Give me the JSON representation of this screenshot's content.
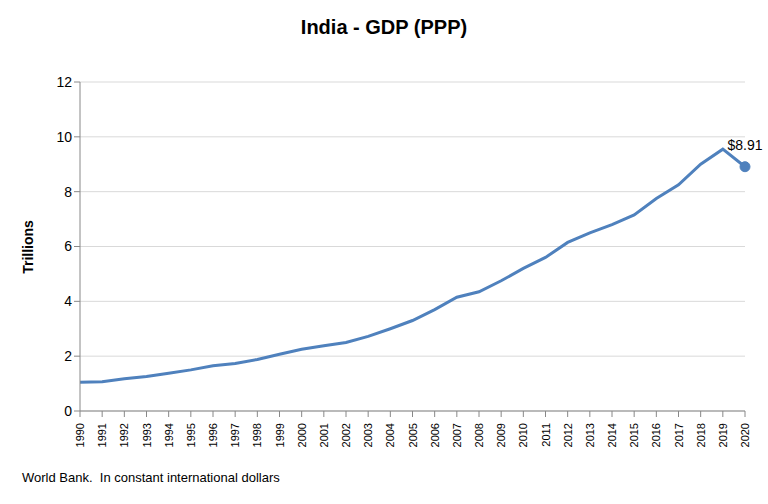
{
  "chart_data": {
    "type": "line",
    "title": "India - GDP (PPP)",
    "y_label": "Trillions",
    "source": "World Bank.  In constant international dollars",
    "categories": [
      "1990",
      "1991",
      "1992",
      "1993",
      "1994",
      "1995",
      "1996",
      "1997",
      "1998",
      "1999",
      "2000",
      "2001",
      "2002",
      "2003",
      "2004",
      "2005",
      "2006",
      "2007",
      "2008",
      "2009",
      "2010",
      "2011",
      "2012",
      "2013",
      "2014",
      "2015",
      "2016",
      "2017",
      "2018",
      "2019",
      "2020"
    ],
    "values": [
      1.05,
      1.07,
      1.18,
      1.26,
      1.38,
      1.5,
      1.65,
      1.73,
      1.88,
      2.07,
      2.25,
      2.38,
      2.5,
      2.72,
      3.0,
      3.3,
      3.7,
      4.15,
      4.35,
      4.75,
      5.2,
      5.6,
      6.15,
      6.5,
      6.8,
      7.15,
      7.75,
      8.25,
      9.0,
      9.55,
      8.91
    ],
    "color": "#4f81bd",
    "ylim": [
      0,
      12
    ],
    "yticks": [
      0,
      2,
      4,
      6,
      8,
      10,
      12
    ],
    "grid": true,
    "annotations": [
      {
        "x": "2020",
        "y": 8.91,
        "text": "$8.91"
      }
    ]
  }
}
